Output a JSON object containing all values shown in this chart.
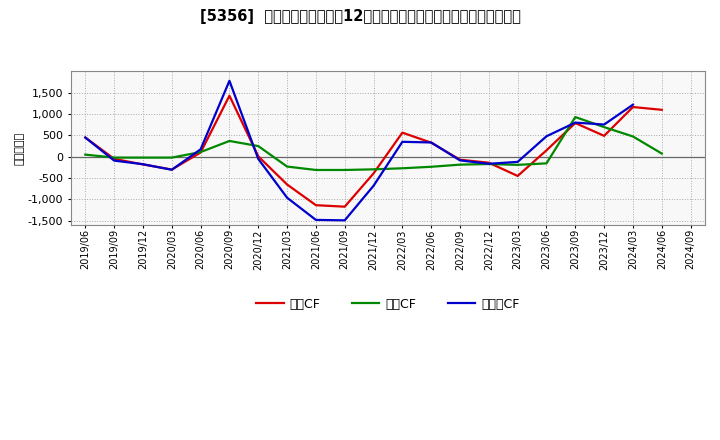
{
  "title": "[5356]  キャッシュフローの12か月移動合計の対前年同期増減額の推移",
  "ylabel": "（百万円）",
  "x_labels": [
    "2019/06",
    "2019/09",
    "2019/12",
    "2020/03",
    "2020/06",
    "2020/09",
    "2020/12",
    "2021/03",
    "2021/06",
    "2021/09",
    "2021/12",
    "2022/03",
    "2022/06",
    "2022/09",
    "2022/12",
    "2023/03",
    "2023/06",
    "2023/09",
    "2023/12",
    "2024/03",
    "2024/06",
    "2024/09"
  ],
  "operating_cf": [
    450,
    -50,
    -180,
    -300,
    100,
    1430,
    10,
    -650,
    -1135,
    -1170,
    -390,
    565,
    330,
    -70,
    -140,
    -450,
    150,
    790,
    490,
    1165,
    1100,
    null
  ],
  "investing_cf": [
    50,
    -20,
    -20,
    -20,
    110,
    370,
    250,
    -230,
    -310,
    -310,
    -295,
    -270,
    -235,
    -185,
    -170,
    -190,
    -155,
    930,
    695,
    475,
    75,
    null
  ],
  "free_cf": [
    450,
    -90,
    -175,
    -305,
    175,
    1780,
    -50,
    -960,
    -1480,
    -1490,
    -680,
    350,
    335,
    -85,
    -165,
    -120,
    480,
    800,
    755,
    1220,
    null,
    null
  ],
  "operating_color": "#dd0000",
  "investing_color": "#008800",
  "free_color": "#0000cc",
  "ylim_min": -1600,
  "ylim_max": 2000,
  "yticks": [
    -1500,
    -1000,
    -500,
    0,
    500,
    1000,
    1500
  ],
  "plot_bg_color": "#f8f8f8",
  "fig_bg_color": "#ffffff",
  "grid_color": "#aaaaaa",
  "zero_line_color": "#666666",
  "legend_labels": [
    "営業CF",
    "投資CF",
    "フリーCF"
  ]
}
